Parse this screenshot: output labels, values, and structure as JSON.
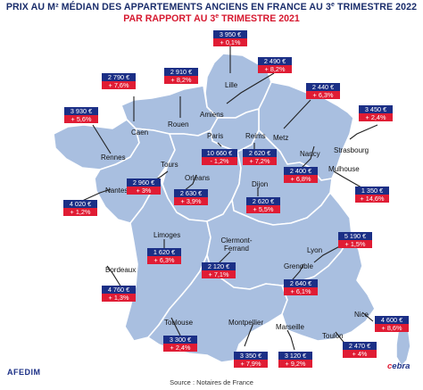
{
  "title_line1": "PRIX AU M² MÉDIAN DES APPARTEMENTS ANCIENS EN FRANCE AU 3",
  "title_line1_sup": "e",
  "title_line1_end": " TRIMESTRE 2022",
  "title_line2": "PAR RAPPORT AU 3",
  "title_line2_sup": "e",
  "title_line2_end": " TRIMESTRE 2021",
  "colors": {
    "map_fill": "#a9bfe0",
    "price_box": "#1b2f86",
    "change_box": "#e01c34",
    "title": "#1a2d6b",
    "subtitle": "#d6182f"
  },
  "cities": [
    {
      "name": "Lille",
      "price": "3 950 €",
      "change": "+ 0,1%"
    },
    {
      "name": "Amiens",
      "price": "2 490 €",
      "change": "+ 8,2%"
    },
    {
      "name": "Rouen",
      "price": "2 910 €",
      "change": "+ 8,2%"
    },
    {
      "name": "Caen",
      "price": "2 790 €",
      "change": "+ 7,6%"
    },
    {
      "name": "Rennes",
      "price": "3 930 €",
      "change": "+ 5,6%"
    },
    {
      "name": "Metz",
      "price": "2 440 €",
      "change": "+ 6,3%"
    },
    {
      "name": "Strasbourg",
      "price": "3 450 €",
      "change": "+ 2,4%"
    },
    {
      "name": "Paris",
      "price": "10 660 €",
      "change": "- 1,2%"
    },
    {
      "name": "Reims",
      "price": "2 620 €",
      "change": "+ 7,2%"
    },
    {
      "name": "Nancy",
      "price": "2 400 €",
      "change": "+ 6,8%"
    },
    {
      "name": "Tours",
      "price": "2 960 €",
      "change": "+ 3%"
    },
    {
      "name": "Orléans",
      "price": "2 630 €",
      "change": "+ 3,9%"
    },
    {
      "name": "Nantes",
      "price": "4 020 €",
      "change": "+ 1,2%"
    },
    {
      "name": "Dijon",
      "price": "2 620 €",
      "change": "+ 5,5%"
    },
    {
      "name": "Mulhouse",
      "price": "1 350 €",
      "change": "+ 14,6%"
    },
    {
      "name": "Limoges",
      "price": "1 620 €",
      "change": "+ 6,3%"
    },
    {
      "name": "Clermont-Ferrand",
      "price": "2 120 €",
      "change": "+ 7,1%"
    },
    {
      "name": "Lyon",
      "price": "5 190 €",
      "change": "+ 1,5%"
    },
    {
      "name": "Bordeaux",
      "price": "4 760 €",
      "change": "+ 1,3%"
    },
    {
      "name": "Grenoble",
      "price": "2 640 €",
      "change": "+ 6,1%"
    },
    {
      "name": "Toulouse",
      "price": "3 300 €",
      "change": "+ 2,4%"
    },
    {
      "name": "Montpellier",
      "price": "3 350 €",
      "change": "+ 7,9%"
    },
    {
      "name": "Marseille",
      "price": "3 120 €",
      "change": "+ 9,2%"
    },
    {
      "name": "Nice",
      "price": "4 600 €",
      "change": "+ 8,6%"
    },
    {
      "name": "Toulon",
      "price": "2 470 €",
      "change": "+ 4%"
    }
  ],
  "source": "Source : Notaires de France",
  "logo_left": "AFEDIM",
  "logo_right_a": "c",
  "logo_right_b": "ebra"
}
